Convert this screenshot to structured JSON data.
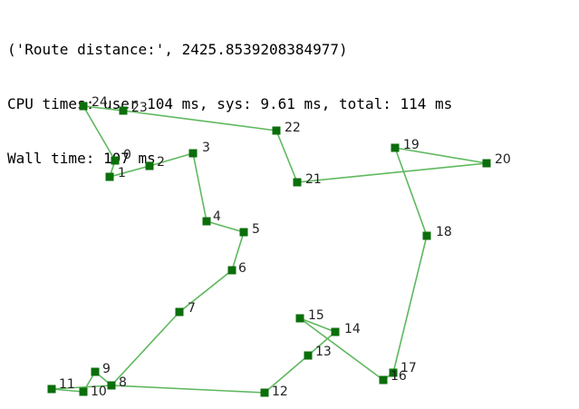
{
  "output_lines": [
    "('Route distance:', 2425.8539208384977)",
    "CPU times: user 104 ms, sys: 9.61 ms, total: 114 ms",
    "Wall time: 107 ms"
  ],
  "colors": {
    "edge": "#5fb85f",
    "node": "#0b6e0b",
    "label": "#222222"
  },
  "route": {
    "nodes": [
      {
        "id": "0",
        "label": "0"
      },
      {
        "id": "1",
        "label": "1"
      },
      {
        "id": "2",
        "label": "2"
      },
      {
        "id": "3",
        "label": "3"
      },
      {
        "id": "4",
        "label": "4"
      },
      {
        "id": "5",
        "label": "5"
      },
      {
        "id": "6",
        "label": "6"
      },
      {
        "id": "7",
        "label": "7"
      },
      {
        "id": "8",
        "label": "8"
      },
      {
        "id": "9",
        "label": "9"
      },
      {
        "id": "10",
        "label": "10"
      },
      {
        "id": "11",
        "label": "11"
      },
      {
        "id": "12",
        "label": "12"
      },
      {
        "id": "13",
        "label": "13"
      },
      {
        "id": "14",
        "label": "14"
      },
      {
        "id": "15",
        "label": "15"
      },
      {
        "id": "16",
        "label": "16"
      },
      {
        "id": "17",
        "label": "17"
      },
      {
        "id": "18",
        "label": "18"
      },
      {
        "id": "19",
        "label": "19"
      },
      {
        "id": "20",
        "label": "20"
      },
      {
        "id": "21",
        "label": "21"
      },
      {
        "id": "22",
        "label": "22"
      },
      {
        "id": "23",
        "label": "23"
      },
      {
        "id": "24",
        "label": "24"
      }
    ],
    "edges": [
      [
        "0",
        "1"
      ],
      [
        "1",
        "2"
      ],
      [
        "2",
        "3"
      ],
      [
        "3",
        "4"
      ],
      [
        "4",
        "5"
      ],
      [
        "5",
        "6"
      ],
      [
        "6",
        "7"
      ],
      [
        "7",
        "8"
      ],
      [
        "8",
        "9"
      ],
      [
        "9",
        "10"
      ],
      [
        "10",
        "11"
      ],
      [
        "11",
        "8"
      ],
      [
        "8",
        "12"
      ],
      [
        "12",
        "13"
      ],
      [
        "13",
        "14"
      ],
      [
        "14",
        "15"
      ],
      [
        "15",
        "16"
      ],
      [
        "16",
        "17"
      ],
      [
        "17",
        "18"
      ],
      [
        "18",
        "19"
      ],
      [
        "19",
        "20"
      ],
      [
        "20",
        "21"
      ],
      [
        "21",
        "22"
      ],
      [
        "22",
        "23"
      ],
      [
        "23",
        "24"
      ],
      [
        "24",
        "0"
      ]
    ]
  }
}
